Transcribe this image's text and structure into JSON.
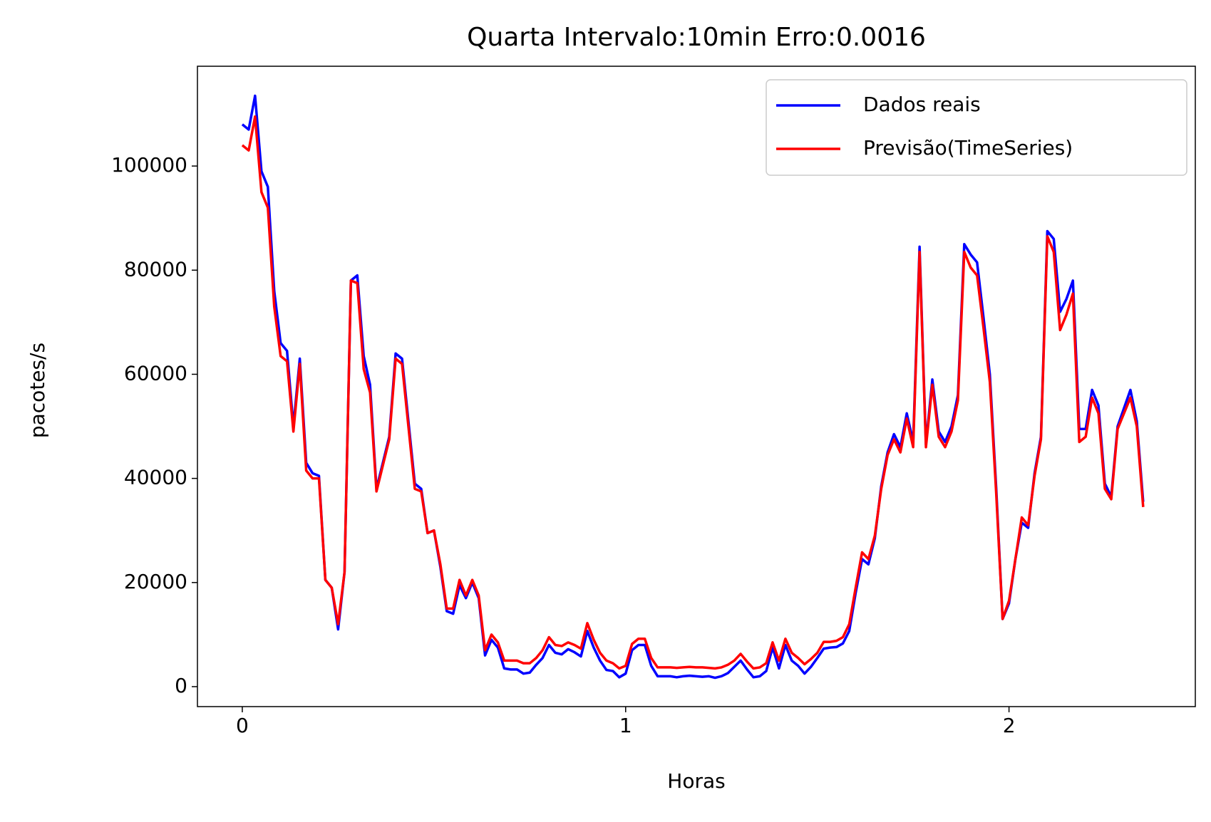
{
  "chart_data": {
    "type": "line",
    "title": "Quarta Intervalo:10min Erro:0.0016",
    "x_label": "Horas",
    "y_label": "pacotes/s",
    "xlim": [
      -0.117,
      2.486
    ],
    "ylim": [
      -3835,
      119170
    ],
    "xticks": [
      0,
      1,
      2
    ],
    "yticks": [
      0,
      20000,
      40000,
      60000,
      80000,
      100000
    ],
    "grid": false,
    "legend": "upper right",
    "x": [
      0,
      0.0167,
      0.0333,
      0.05,
      0.0667,
      0.0833,
      0.1,
      0.1167,
      0.1333,
      0.15,
      0.1667,
      0.1833,
      0.2,
      0.2167,
      0.2333,
      0.25,
      0.2667,
      0.2833,
      0.3,
      0.3167,
      0.3333,
      0.35,
      0.3667,
      0.3833,
      0.4,
      0.4167,
      0.4333,
      0.45,
      0.4667,
      0.4833,
      0.5,
      0.5167,
      0.5333,
      0.55,
      0.5667,
      0.5833,
      0.6,
      0.6167,
      0.6333,
      0.65,
      0.6667,
      0.6833,
      0.7,
      0.7167,
      0.7333,
      0.75,
      0.7667,
      0.7833,
      0.8,
      0.8167,
      0.8333,
      0.85,
      0.8667,
      0.8833,
      0.9,
      0.9167,
      0.9333,
      0.95,
      0.9667,
      0.9833,
      1,
      1.0167,
      1.0333,
      1.05,
      1.0667,
      1.0833,
      1.1,
      1.1167,
      1.1333,
      1.15,
      1.1667,
      1.1833,
      1.2,
      1.2167,
      1.2333,
      1.25,
      1.2667,
      1.2833,
      1.3,
      1.3167,
      1.3333,
      1.35,
      1.3667,
      1.3833,
      1.4,
      1.4167,
      1.4333,
      1.45,
      1.4667,
      1.4833,
      1.5,
      1.5167,
      1.5333,
      1.55,
      1.5667,
      1.5833,
      1.6,
      1.6167,
      1.6333,
      1.65,
      1.6667,
      1.6833,
      1.7,
      1.7167,
      1.7333,
      1.75,
      1.7667,
      1.7833,
      1.8,
      1.8167,
      1.8333,
      1.85,
      1.8667,
      1.8833,
      1.9,
      1.9167,
      1.9333,
      1.95,
      1.9667,
      1.9833,
      2,
      2.0167,
      2.0333,
      2.05,
      2.0667,
      2.0833,
      2.1,
      2.1167,
      2.1333,
      2.15,
      2.1667,
      2.1833,
      2.2,
      2.2167,
      2.2333,
      2.25,
      2.2667,
      2.2833,
      2.3,
      2.3167,
      2.3333,
      2.35
    ],
    "series": [
      {
        "name": "Dados reais",
        "color": "#0000ff",
        "values": [
          108000,
          107000,
          113500,
          99000,
          96000,
          76000,
          66000,
          64500,
          50000,
          63000,
          43000,
          41000,
          40500,
          20500,
          19000,
          11000,
          22000,
          78000,
          79000,
          63500,
          58000,
          38000,
          43000,
          48000,
          64000,
          63000,
          51000,
          39000,
          38000,
          29500,
          30000,
          23000,
          14500,
          14000,
          19500,
          17000,
          20000,
          17000,
          6000,
          9000,
          7500,
          3500,
          3300,
          3300,
          2500,
          2700,
          4200,
          5500,
          8000,
          6500,
          6200,
          7200,
          6600,
          5800,
          10700,
          7500,
          5000,
          3200,
          3000,
          1800,
          2500,
          7000,
          8000,
          8000,
          4000,
          2000,
          2000,
          2000,
          1800,
          2000,
          2100,
          2000,
          1900,
          2000,
          1700,
          2000,
          2600,
          3800,
          5000,
          3300,
          1800,
          2000,
          3000,
          7500,
          3500,
          8000,
          5000,
          4000,
          2500,
          3800,
          5500,
          7300,
          7500,
          7600,
          8300,
          10700,
          18000,
          24500,
          23500,
          28500,
          38500,
          45000,
          48500,
          46000,
          52500,
          47000,
          84500,
          46500,
          59000,
          49000,
          47000,
          50000,
          56000,
          85000,
          83000,
          81500,
          71000,
          60000,
          38000,
          13000,
          16000,
          24500,
          31500,
          30500,
          41000,
          48000,
          87500,
          86000,
          72000,
          74500,
          78000,
          49500,
          49500,
          57000,
          54000,
          39000,
          36500,
          50000,
          53500,
          57000,
          51000,
          35500
        ]
      },
      {
        "name": "Previsão(TimeSeries)",
        "color": "#ff0000",
        "values": [
          104000,
          103000,
          109500,
          95000,
          92000,
          73000,
          63500,
          62500,
          49000,
          62000,
          41500,
          40000,
          40000,
          20500,
          19000,
          12000,
          22000,
          78000,
          77500,
          61000,
          56500,
          37500,
          42500,
          47500,
          63000,
          62000,
          50000,
          38000,
          37500,
          29500,
          30000,
          23500,
          15000,
          15000,
          20500,
          17500,
          20500,
          17500,
          7000,
          10000,
          8500,
          5000,
          5000,
          5000,
          4500,
          4500,
          5500,
          7000,
          9500,
          8000,
          7800,
          8500,
          8000,
          7300,
          12200,
          9000,
          6500,
          5000,
          4500,
          3500,
          4000,
          8200,
          9200,
          9200,
          5500,
          3700,
          3700,
          3700,
          3600,
          3700,
          3800,
          3700,
          3700,
          3600,
          3500,
          3700,
          4200,
          5000,
          6300,
          4800,
          3500,
          3700,
          4500,
          8500,
          5000,
          9200,
          6500,
          5500,
          4300,
          5300,
          6500,
          8600,
          8600,
          8800,
          9500,
          12000,
          19000,
          25800,
          24500,
          29000,
          38000,
          44500,
          47500,
          45000,
          51500,
          46000,
          83500,
          46000,
          58000,
          48000,
          46000,
          49000,
          55000,
          83500,
          80500,
          79000,
          69000,
          58500,
          37000,
          13000,
          16500,
          24500,
          32500,
          31000,
          40500,
          47500,
          86500,
          83500,
          68500,
          71500,
          75500,
          47000,
          48000,
          55500,
          52500,
          38000,
          36000,
          49500,
          52500,
          55500,
          50000,
          34500
        ]
      }
    ]
  }
}
